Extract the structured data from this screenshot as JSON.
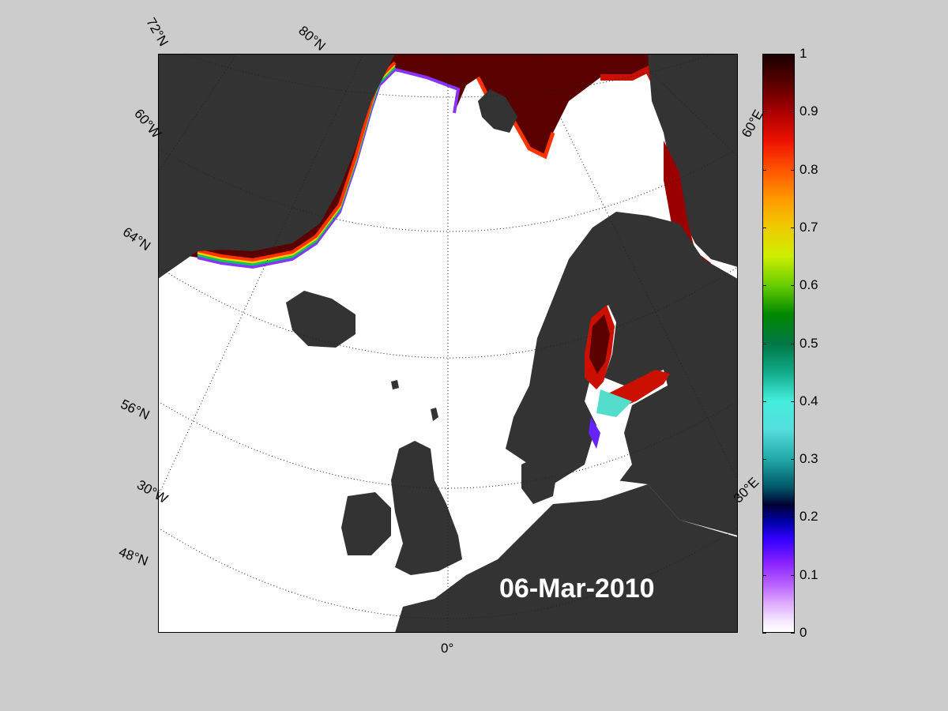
{
  "map": {
    "date": "06-Mar-2010",
    "lat_labels": [
      "72°N",
      "60°N",
      "64°N",
      "56°N",
      "48°N"
    ],
    "lon_labels": [
      "80°N",
      "60°W",
      "30°W",
      "0°",
      "60°E",
      "30°E"
    ]
  },
  "colorbar": {
    "ticks": [
      "1",
      "0.9",
      "0.8",
      "0.7",
      "0.6",
      "0.5",
      "0.4",
      "0.3",
      "0.2",
      "0.1",
      "0"
    ],
    "min": 0,
    "max": 1
  },
  "colors": {
    "land": "#333333",
    "ocean": "#ffffff",
    "background": "#cccccc",
    "ice_high": "#1a0000"
  }
}
